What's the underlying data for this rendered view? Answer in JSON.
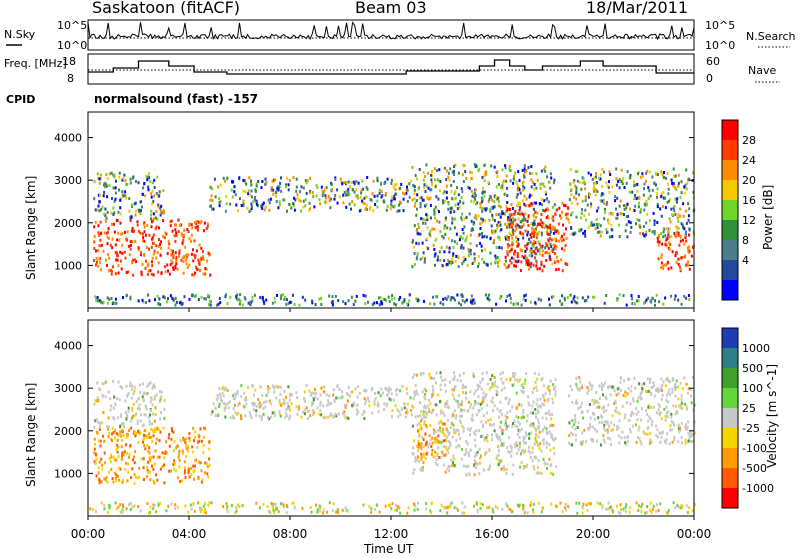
{
  "header": {
    "station": "Saskatoon (fitACF)",
    "beam": "Beam 03",
    "date": "18/Mar/2011"
  },
  "cpid_label": "CPID",
  "cpid_value": "normalsound (fast) -157",
  "chart_data": [
    {
      "type": "line",
      "ylabel": "N.Sky",
      "ylabel_right": "N.Search",
      "ylim": [
        1,
        100000
      ],
      "yscale": "log",
      "left_ticks": [
        "10^5",
        "10^0"
      ],
      "right_ticks": [
        "10^5",
        "10^0"
      ],
      "series": [
        {
          "name": "N.Sky",
          "style": "solid"
        },
        {
          "name": "N.Search",
          "style": "dotted"
        }
      ]
    },
    {
      "type": "line",
      "ylabel": "Freq. [MHz]",
      "ylabel_right": "Nave",
      "left_ticks": [
        "18",
        "8"
      ],
      "right_ticks": [
        "60",
        "0"
      ],
      "series": [
        {
          "name": "Freq.",
          "style": "solid"
        },
        {
          "name": "Nave",
          "style": "dotted"
        }
      ]
    },
    {
      "type": "heatmap",
      "quantity": "power",
      "ylabel": "Slant Range [km]",
      "ylim": [
        0,
        4600
      ],
      "yticks": [
        1000,
        2000,
        3000,
        4000
      ],
      "colorbar_label": "Power [dB]",
      "colorbar_ticks": [
        "28",
        "24",
        "20",
        "16",
        "12",
        "8",
        "4"
      ],
      "colorbar_colors": [
        "#ff0000",
        "#ff3b00",
        "#ff8c00",
        "#f6c800",
        "#72d62a",
        "#2f8f3a",
        "#4a7f8a",
        "#204a9f",
        "#0000ff"
      ],
      "echo_regions": [
        {
          "t": [
            0.2,
            4.8
          ],
          "r": [
            800,
            2100
          ],
          "level": "high"
        },
        {
          "t": [
            0.2,
            3.0
          ],
          "r": [
            2100,
            3200
          ],
          "level": "mixed"
        },
        {
          "t": [
            4.8,
            12.8
          ],
          "r": [
            2300,
            3100
          ],
          "level": "mixed"
        },
        {
          "t": [
            12.8,
            18.5
          ],
          "r": [
            1000,
            3400
          ],
          "level": "mixed"
        },
        {
          "t": [
            16.5,
            19.0
          ],
          "r": [
            900,
            2500
          ],
          "level": "high"
        },
        {
          "t": [
            19.0,
            24.0
          ],
          "r": [
            1700,
            3300
          ],
          "level": "mixed"
        },
        {
          "t": [
            22.5,
            24.0
          ],
          "r": [
            900,
            1800
          ],
          "level": "high"
        },
        {
          "t": [
            0.0,
            24.0
          ],
          "r": [
            100,
            350
          ],
          "level": "low"
        }
      ]
    },
    {
      "type": "heatmap",
      "quantity": "velocity",
      "ylabel": "Slant Range [km]",
      "ylim": [
        0,
        4600
      ],
      "yticks": [
        1000,
        2000,
        3000,
        4000
      ],
      "colorbar_label": "Velocity [m s^-1]",
      "colorbar_ticks": [
        "1000",
        "500",
        "100",
        "25",
        "-25",
        "-100",
        "-500",
        "-1000"
      ],
      "colorbar_colors": [
        "#1e3cb4",
        "#2f7f86",
        "#3da12a",
        "#65d63a",
        "#c8c8c8",
        "#f7d400",
        "#ff9a00",
        "#ff5a00",
        "#ff0000"
      ],
      "echo_regions": [
        {
          "t": [
            0.2,
            4.8
          ],
          "r": [
            800,
            2100
          ],
          "level": "neg"
        },
        {
          "t": [
            0.2,
            3.0
          ],
          "r": [
            2100,
            3200
          ],
          "level": "zero"
        },
        {
          "t": [
            4.8,
            12.8
          ],
          "r": [
            2300,
            3100
          ],
          "level": "zero"
        },
        {
          "t": [
            12.8,
            18.5
          ],
          "r": [
            1000,
            3400
          ],
          "level": "zero"
        },
        {
          "t": [
            13.0,
            14.2
          ],
          "r": [
            1400,
            2200
          ],
          "level": "neg"
        },
        {
          "t": [
            19.0,
            24.0
          ],
          "r": [
            1700,
            3300
          ],
          "level": "zero"
        },
        {
          "t": [
            0.0,
            24.0
          ],
          "r": [
            100,
            350
          ],
          "level": "low"
        }
      ]
    }
  ],
  "x_axis": {
    "label": "Time UT",
    "ticks": [
      "00:00",
      "04:00",
      "08:00",
      "12:00",
      "16:00",
      "20:00",
      "00:00"
    ]
  }
}
